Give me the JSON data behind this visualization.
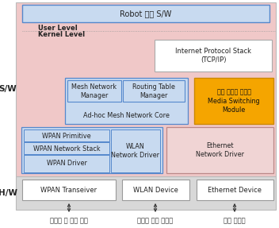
{
  "sw_bg": "#f0c8c8",
  "hw_bg": "#d8d8d8",
  "robot_box_fc": "#c8daf0",
  "robot_box_ec": "#5588cc",
  "robot_text": "Robot 연동 S/W",
  "user_level_text": "User Level",
  "kernel_level_text": "Kernel Level",
  "sw_label": "S/W",
  "hw_label": "H/W",
  "inet_fc": "#ffffff",
  "inet_ec": "#aaaaaa",
  "inet_text": "Internet Protocol Stack\n(TCP/IP)",
  "adhoc_fc": "#c8daf0",
  "adhoc_ec": "#5588cc",
  "mesh_text": "Mesh Network\nManager",
  "routing_text": "Routing Table\nManager",
  "adhoc_core_text": "Ad-hoc Mesh Network Core",
  "media_fc": "#f5a500",
  "media_ec": "#cc8800",
  "media_text": "고속 대용량 데이터\nMedia Switching\nModule",
  "wpan_outer_fc": "#c8daf0",
  "wpan_outer_ec": "#5588cc",
  "wpan_prim_text": "WPAN Primitive",
  "wpan_stack_text": "WPAN Network Stack",
  "wpan_drv_text": "WPAN Driver",
  "wlan_drv_text": "WLAN\nNetwork Driver",
  "eth_drv_fc": "#f0d4d4",
  "eth_drv_ec": "#bb8888",
  "eth_drv_text": "Ethernet\nNetwork Driver",
  "hw_box_fc": "#ffffff",
  "hw_box_ec": "#999999",
  "wpan_trans_text": "WPAN Transeiver",
  "wlan_dev_text": "WLAN Device",
  "eth_dev_text": "Ethernet Device",
  "arrow_color": "#333333",
  "label1": "라우팅 및 제어 정보",
  "label2": "대용량 고속 데이터",
  "label3": "로봇 데이터",
  "outer_bg": "#ffffff"
}
